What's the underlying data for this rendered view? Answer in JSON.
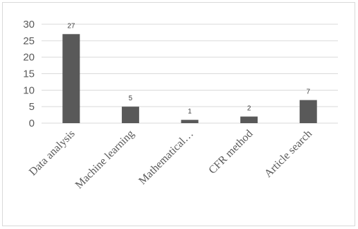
{
  "chart_data": {
    "type": "bar",
    "categories": [
      "Data analysis",
      "Machine learning",
      "Mathematical…",
      "CFR method",
      "Article search"
    ],
    "values": [
      27,
      5,
      1,
      2,
      7
    ],
    "data_labels": [
      "27",
      "5",
      "1",
      "2",
      "7"
    ],
    "ylim": [
      0,
      30
    ],
    "yticks": [
      0,
      5,
      10,
      15,
      20,
      25,
      30
    ],
    "grid": true,
    "legend": "none",
    "bar_color": "#595959",
    "grid_color": "#d9d9d9"
  }
}
